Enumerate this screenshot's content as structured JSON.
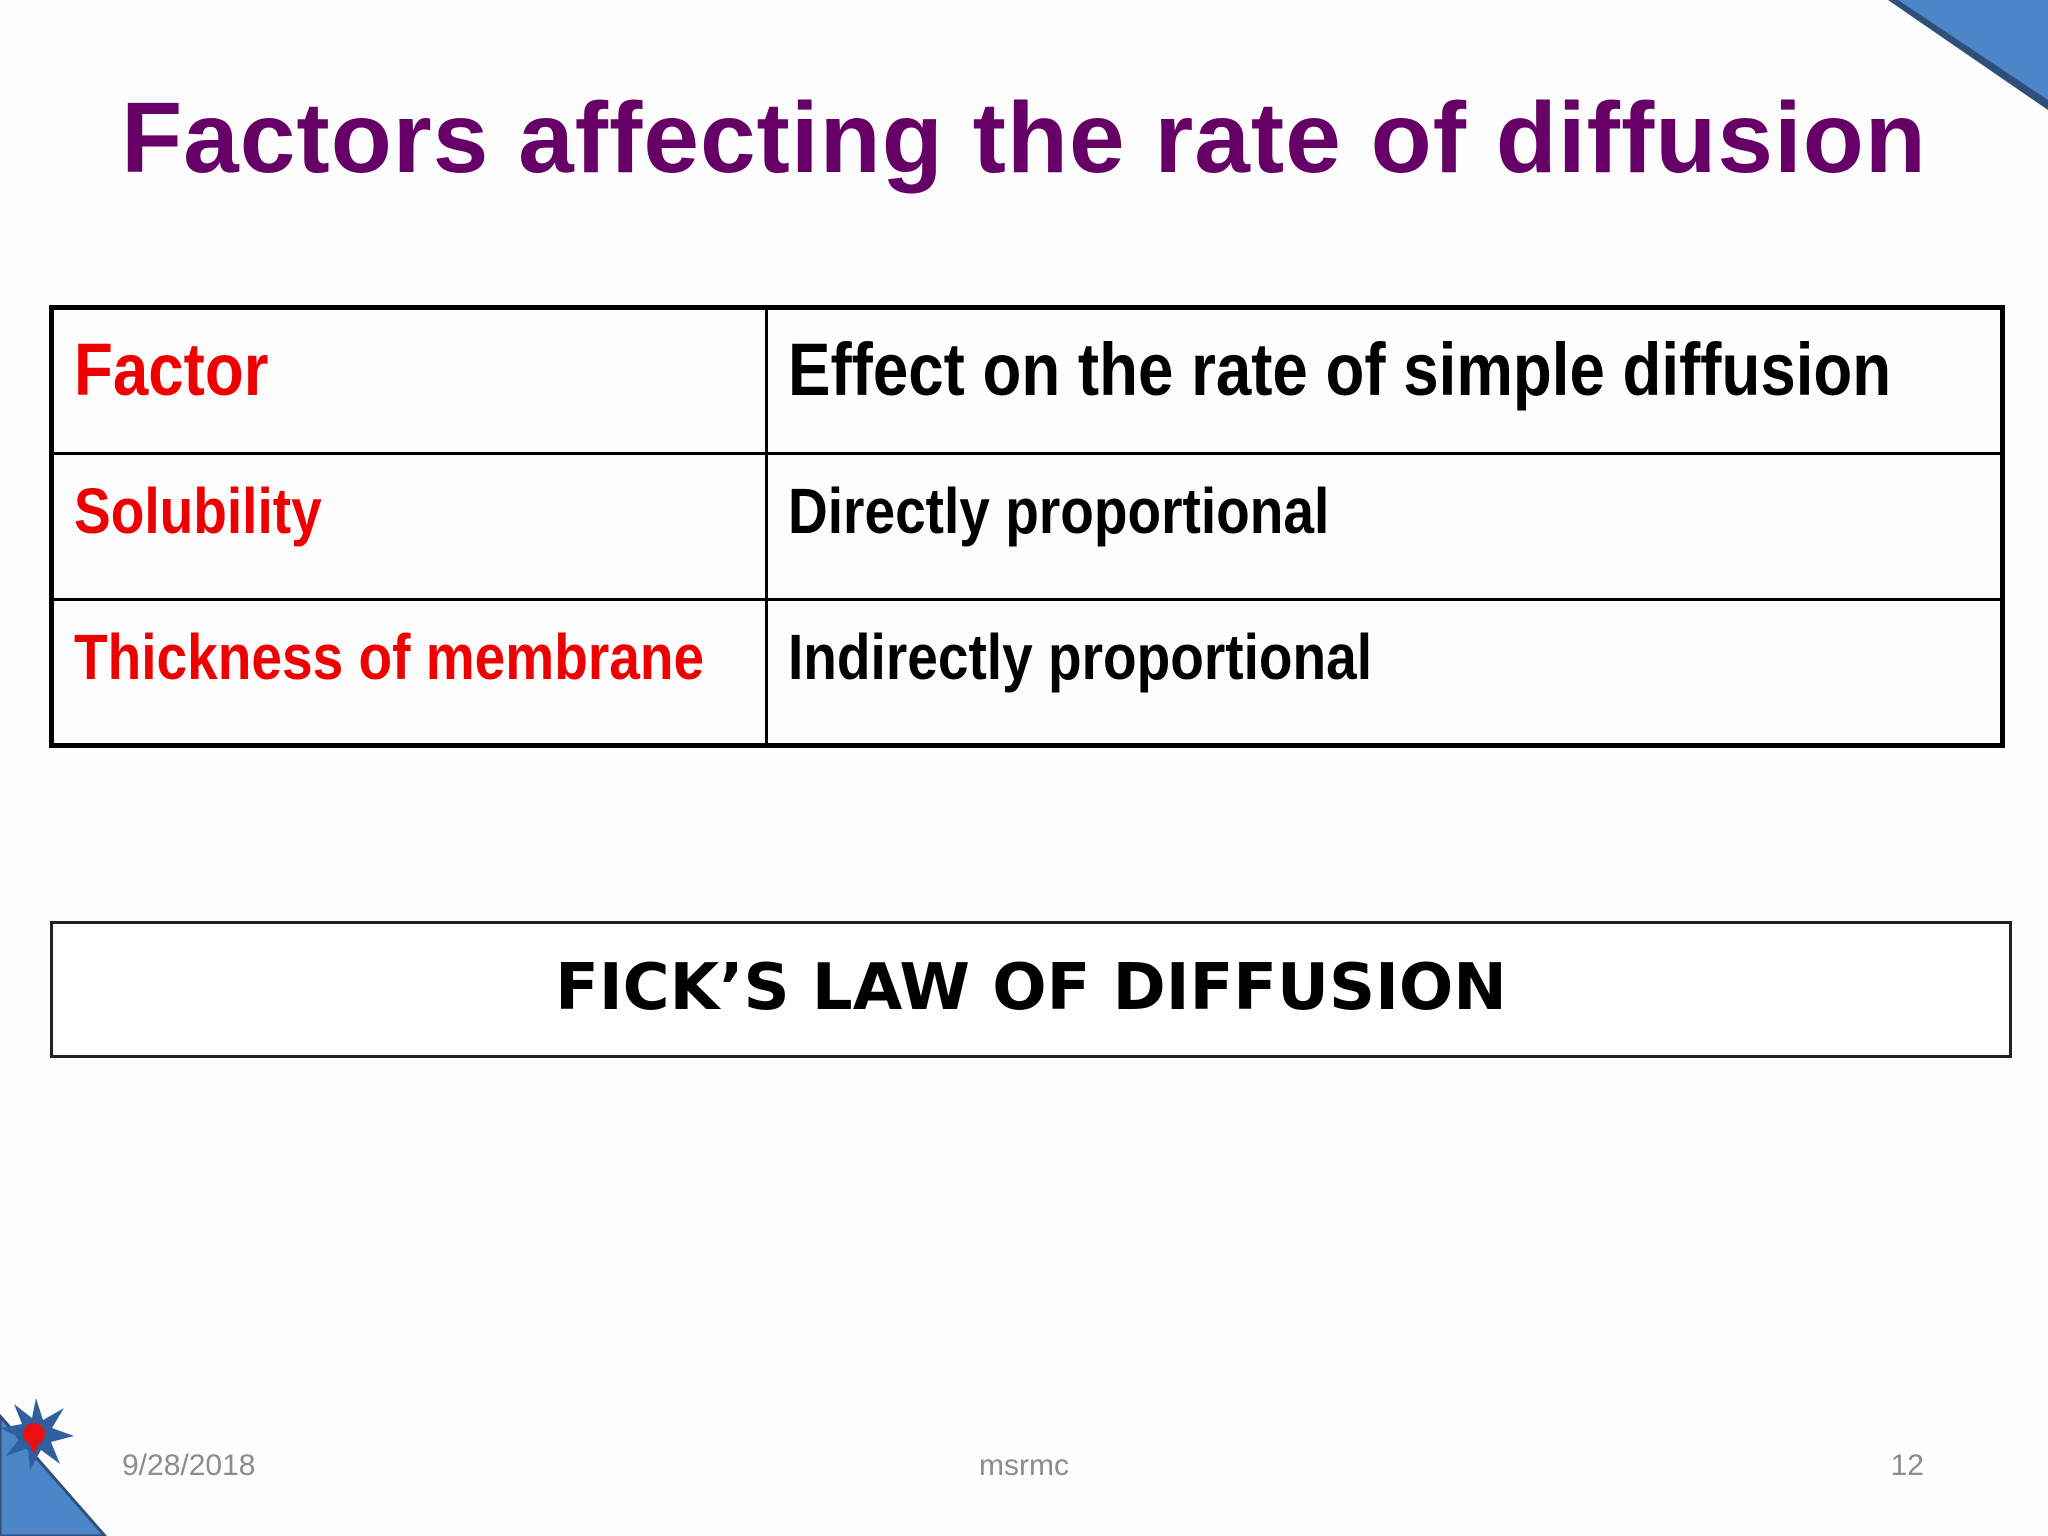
{
  "slide": {
    "title": "Factors affecting the rate of diffusion",
    "table": {
      "headers": [
        "Factor",
        "Effect on the rate of simple diffusion"
      ],
      "rows": [
        [
          "Solubility",
          "Directly proportional"
        ],
        [
          "Thickness of membrane",
          "Indirectly proportional"
        ]
      ]
    },
    "box_text": "FICK’S LAW OF DIFFUSION",
    "footer": {
      "date": "9/28/2018",
      "center": "msrmc",
      "page": "12"
    }
  },
  "colors": {
    "title": "#660066",
    "factor_text": "#ee0000",
    "effect_text": "#000000",
    "corner_blue": "#4a86c8",
    "corner_dark": "#2f4f7a",
    "footer_text": "#8c8c8c"
  }
}
